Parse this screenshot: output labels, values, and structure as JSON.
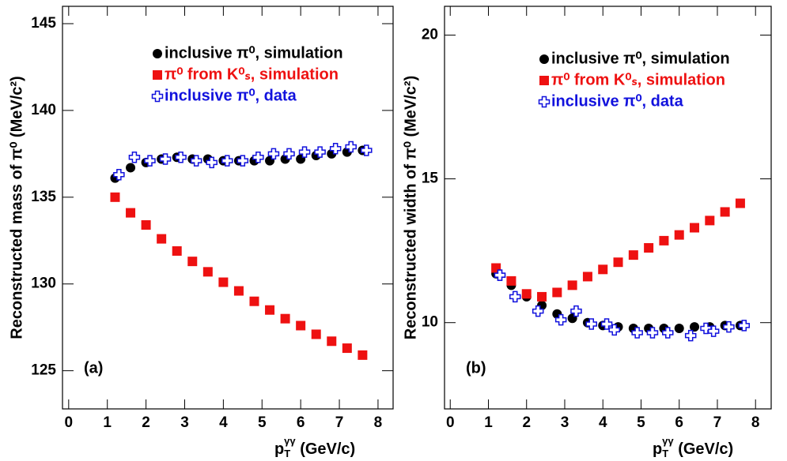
{
  "chart_data": [
    {
      "type": "scatter",
      "annotation": "(a)",
      "y_label": "Reconstructed mass of  π⁰ (MeV/c²)",
      "x_label": [
        "p",
        "T",
        "γγ",
        " (GeV/c)"
      ],
      "xlim": [
        -0.16,
        8.39
      ],
      "xticks": [
        0,
        1,
        2,
        3,
        4,
        5,
        6,
        7,
        8
      ],
      "ylim": [
        122.8,
        146
      ],
      "yticks": [
        125,
        130,
        135,
        140,
        145
      ],
      "series": [
        {
          "name": "inclusive π⁰, simulation",
          "color": "#000000",
          "marker": "circle",
          "x": [
            1.2,
            1.6,
            2.0,
            2.4,
            2.8,
            3.2,
            3.6,
            4.0,
            4.4,
            4.8,
            5.2,
            5.6,
            6.0,
            6.4,
            6.8,
            7.2,
            7.6
          ],
          "values": [
            136.1,
            136.7,
            137.0,
            137.2,
            137.3,
            137.2,
            137.2,
            137.1,
            137.1,
            137.1,
            137.1,
            137.2,
            137.2,
            137.4,
            137.5,
            137.6,
            137.7
          ]
        },
        {
          "name": "π⁰ from K⁰ₛ, simulation",
          "color": "#ee1111",
          "marker": "square",
          "x": [
            1.2,
            1.6,
            2.0,
            2.4,
            2.8,
            3.2,
            3.6,
            4.0,
            4.4,
            4.8,
            5.2,
            5.6,
            6.0,
            6.4,
            6.8,
            7.2,
            7.6
          ],
          "values": [
            135.0,
            134.1,
            133.4,
            132.6,
            131.9,
            131.3,
            130.7,
            130.1,
            129.6,
            129.0,
            128.5,
            128.0,
            127.6,
            127.1,
            126.7,
            126.3,
            125.9
          ]
        },
        {
          "name": "inclusive π⁰, data",
          "color": "#1111dd",
          "marker": "cross",
          "x": [
            1.3,
            1.7,
            2.1,
            2.5,
            2.9,
            3.3,
            3.7,
            4.1,
            4.5,
            4.9,
            5.3,
            5.7,
            6.1,
            6.5,
            6.9,
            7.3,
            7.7
          ],
          "values": [
            136.3,
            137.3,
            137.1,
            137.2,
            137.3,
            137.1,
            137.0,
            137.1,
            137.1,
            137.3,
            137.5,
            137.5,
            137.6,
            137.6,
            137.8,
            137.9,
            137.7
          ]
        }
      ]
    },
    {
      "type": "scatter",
      "annotation": "(b)",
      "y_label": "Reconstructed width of  π⁰ (MeV/c²)",
      "x_label": [
        "p",
        "T",
        "γγ",
        " (GeV/c)"
      ],
      "xlim": [
        -0.15,
        8.41
      ],
      "xticks": [
        0,
        1,
        2,
        3,
        4,
        5,
        6,
        7,
        8
      ],
      "ylim": [
        7,
        21
      ],
      "yticks": [
        10,
        15,
        20
      ],
      "series": [
        {
          "name": "inclusive π⁰, simulation",
          "color": "#000000",
          "marker": "circle",
          "x": [
            1.2,
            1.6,
            2.0,
            2.4,
            2.8,
            3.2,
            3.6,
            4.0,
            4.4,
            4.8,
            5.2,
            5.6,
            6.0,
            6.4,
            6.8,
            7.2,
            7.6
          ],
          "values": [
            11.7,
            11.3,
            10.9,
            10.6,
            10.3,
            10.15,
            10.0,
            9.9,
            9.85,
            9.8,
            9.8,
            9.8,
            9.8,
            9.85,
            9.85,
            9.9,
            9.9
          ]
        },
        {
          "name": "π⁰ from K⁰ₛ, simulation",
          "color": "#ee1111",
          "marker": "square",
          "x": [
            1.2,
            1.6,
            2.0,
            2.4,
            2.8,
            3.2,
            3.6,
            4.0,
            4.4,
            4.8,
            5.2,
            5.6,
            6.0,
            6.4,
            6.8,
            7.2,
            7.6
          ],
          "values": [
            11.9,
            11.45,
            11.0,
            10.9,
            11.05,
            11.3,
            11.6,
            11.85,
            12.1,
            12.35,
            12.6,
            12.85,
            13.05,
            13.3,
            13.55,
            13.85,
            14.15
          ]
        },
        {
          "name": "inclusive π⁰, data",
          "color": "#1111dd",
          "marker": "cross",
          "x": [
            1.3,
            1.7,
            2.3,
            2.9,
            3.3,
            3.7,
            4.1,
            4.3,
            4.9,
            5.3,
            5.7,
            6.3,
            6.7,
            6.9,
            7.3,
            7.7,
            1.3
          ],
          "values": [
            11.65,
            10.9,
            10.4,
            10.1,
            10.4,
            9.95,
            9.95,
            9.75,
            9.65,
            9.65,
            9.65,
            9.55,
            9.8,
            9.7,
            9.85,
            9.9,
            11.65
          ]
        }
      ]
    }
  ]
}
